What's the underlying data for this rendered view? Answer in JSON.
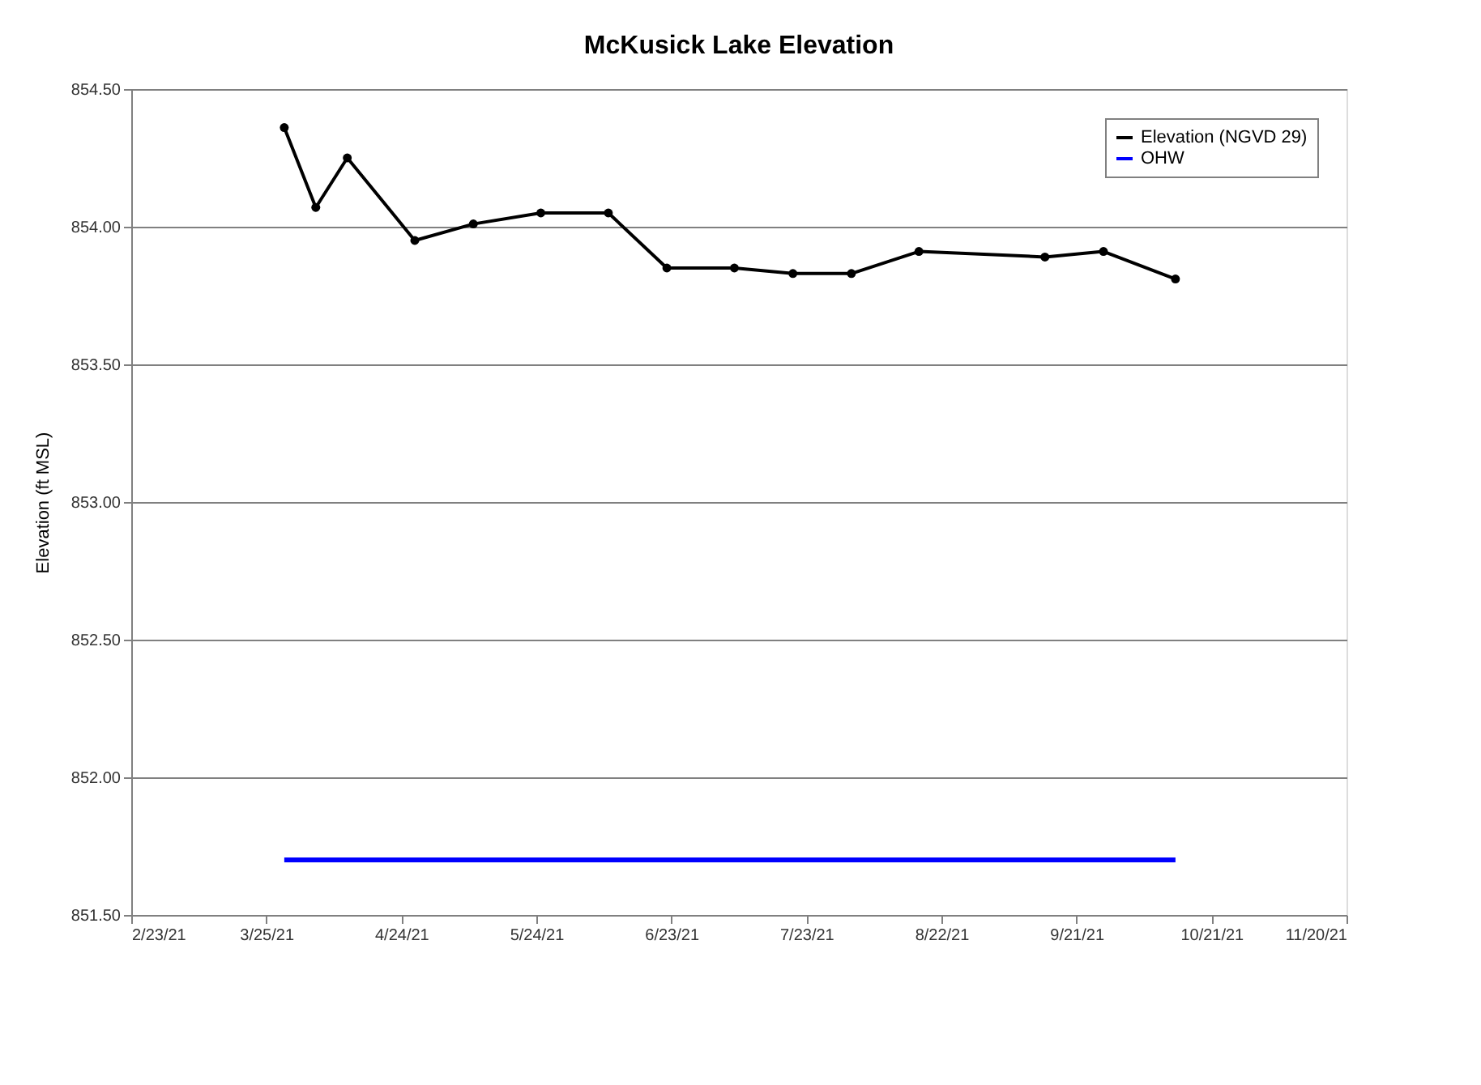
{
  "chart_data": {
    "type": "line",
    "title": "McKusick Lake Elevation",
    "ylabel": "Elevation (ft MSL)",
    "series": [
      {
        "name": "Elevation (NGVD 29)",
        "color": "#000000",
        "marker": "circle",
        "x": [
          "2021-03-29",
          "2021-04-05",
          "2021-04-12",
          "2021-04-27",
          "2021-05-10",
          "2021-05-25",
          "2021-06-09",
          "2021-06-22",
          "2021-07-07",
          "2021-07-20",
          "2021-08-02",
          "2021-08-17",
          "2021-09-14",
          "2021-09-27",
          "2021-10-13"
        ],
        "values": [
          854.36,
          854.07,
          854.25,
          853.95,
          854.01,
          854.05,
          854.05,
          853.85,
          853.85,
          853.83,
          853.83,
          853.91,
          853.89,
          853.91,
          853.81
        ]
      },
      {
        "name": "OHW",
        "color": "#0000ff",
        "marker": "none",
        "x": [
          "2021-03-29",
          "2021-10-13"
        ],
        "values": [
          851.7,
          851.7
        ]
      }
    ],
    "xlim": [
      "2021-02-23",
      "2021-11-20"
    ],
    "xticks": [
      {
        "value": "2021-02-23",
        "label": "2/23/21"
      },
      {
        "value": "2021-03-25",
        "label": "3/25/21"
      },
      {
        "value": "2021-04-24",
        "label": "4/24/21"
      },
      {
        "value": "2021-05-24",
        "label": "5/24/21"
      },
      {
        "value": "2021-06-23",
        "label": "6/23/21"
      },
      {
        "value": "2021-07-23",
        "label": "7/23/21"
      },
      {
        "value": "2021-08-22",
        "label": "8/22/21"
      },
      {
        "value": "2021-09-21",
        "label": "9/21/21"
      },
      {
        "value": "2021-10-21",
        "label": "10/21/21"
      },
      {
        "value": "2021-11-20",
        "label": "11/20/21"
      }
    ],
    "ylim": [
      851.5,
      854.5
    ],
    "yticks": [
      {
        "value": 851.5,
        "label": "851.50"
      },
      {
        "value": 852,
        "label": "852.00"
      },
      {
        "value": 852.5,
        "label": "852.50"
      },
      {
        "value": 853,
        "label": "853.00"
      },
      {
        "value": 853.5,
        "label": "853.50"
      },
      {
        "value": 854,
        "label": "854.00"
      },
      {
        "value": 854.5,
        "label": "854.50"
      }
    ],
    "grid": "y",
    "legend": "top right"
  }
}
